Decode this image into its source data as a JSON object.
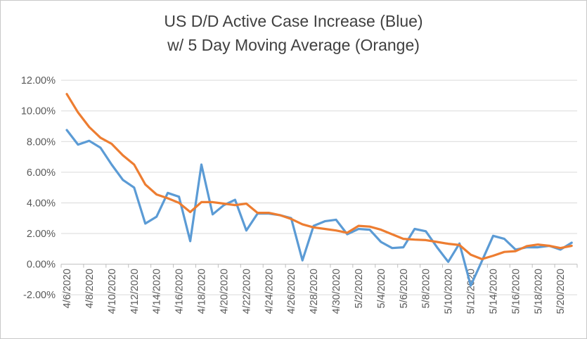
{
  "chart": {
    "title_line1": "US D/D Active Case Increase (Blue)",
    "title_line2": "w/ 5 Day Moving Average (Orange)"
  },
  "chart_data": {
    "type": "line",
    "title": "US D/D Active Case Increase (Blue) w/ 5 Day Moving Average (Orange)",
    "xlabel": "",
    "ylabel": "",
    "x": [
      "4/6/2020",
      "4/7/2020",
      "4/8/2020",
      "4/9/2020",
      "4/10/2020",
      "4/11/2020",
      "4/12/2020",
      "4/13/2020",
      "4/14/2020",
      "4/15/2020",
      "4/16/2020",
      "4/17/2020",
      "4/18/2020",
      "4/19/2020",
      "4/20/2020",
      "4/21/2020",
      "4/22/2020",
      "4/23/2020",
      "4/24/2020",
      "4/25/2020",
      "4/26/2020",
      "4/27/2020",
      "4/28/2020",
      "4/29/2020",
      "4/30/2020",
      "5/1/2020",
      "5/2/2020",
      "5/3/2020",
      "5/4/2020",
      "5/5/2020",
      "5/6/2020",
      "5/7/2020",
      "5/8/2020",
      "5/9/2020",
      "5/10/2020",
      "5/11/2020",
      "5/12/2020",
      "5/13/2020",
      "5/14/2020",
      "5/15/2020",
      "5/16/2020",
      "5/17/2020",
      "5/18/2020",
      "5/19/2020",
      "5/20/2020",
      "5/21/2020"
    ],
    "x_tick_label_every": 2,
    "series": [
      {
        "name": "US D/D Active Case Increase",
        "color": "#5B9BD5",
        "values_pct": [
          8.75,
          7.8,
          8.05,
          7.6,
          6.5,
          5.5,
          5.0,
          2.65,
          3.1,
          4.65,
          4.4,
          1.5,
          6.5,
          3.25,
          3.85,
          4.2,
          2.2,
          3.3,
          3.3,
          3.2,
          3.0,
          0.25,
          2.5,
          2.8,
          2.9,
          1.95,
          2.3,
          2.25,
          1.45,
          1.05,
          1.1,
          2.3,
          2.15,
          1.1,
          0.15,
          1.35,
          -1.4,
          0.2,
          1.85,
          1.65,
          0.95,
          1.1,
          1.1,
          1.2,
          0.95,
          1.4
        ]
      },
      {
        "name": "5 Day Moving Average",
        "color": "#ED7D31",
        "values_pct": [
          11.1,
          9.9,
          8.95,
          8.25,
          7.85,
          7.1,
          6.5,
          5.2,
          4.55,
          4.3,
          4.0,
          3.4,
          4.05,
          4.05,
          3.95,
          3.85,
          3.95,
          3.35,
          3.35,
          3.2,
          2.95,
          2.6,
          2.4,
          2.3,
          2.2,
          2.05,
          2.5,
          2.45,
          2.25,
          1.95,
          1.65,
          1.6,
          1.57,
          1.45,
          1.33,
          1.25,
          0.62,
          0.33,
          0.55,
          0.8,
          0.85,
          1.18,
          1.28,
          1.2,
          1.05,
          1.2
        ]
      }
    ],
    "ylim_pct": [
      -2,
      12
    ],
    "ytick_pct": [
      12,
      10,
      8,
      6,
      4,
      2,
      0,
      -2
    ],
    "ytick_labels": [
      "12.00%",
      "10.00%",
      "8.00%",
      "6.00%",
      "4.00%",
      "2.00%",
      "0.00%",
      "-2.00%"
    ],
    "grid": "horizontal",
    "legend_position": "none",
    "gridline_color": "#D9D9D9",
    "axis_line_color": "#BFBFBF",
    "axis_text_color": "#595959"
  }
}
